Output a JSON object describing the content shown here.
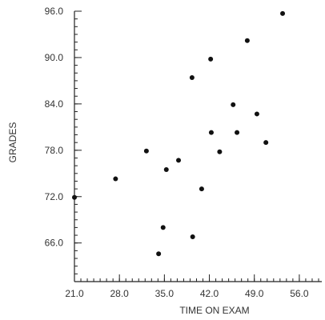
{
  "chart_data": {
    "type": "scatter",
    "xlabel": "TIME ON EXAM",
    "ylabel": "GRADES",
    "xlim": [
      21.0,
      59.5
    ],
    "ylim": [
      61.0,
      96.0
    ],
    "x_ticks": [
      21.0,
      28.0,
      35.0,
      42.0,
      49.0,
      56.0
    ],
    "x_tick_labels": [
      "21.0",
      "28.0",
      "35.0",
      "42.0",
      "49.0",
      "56.0"
    ],
    "y_ticks": [
      66.0,
      72.0,
      78.0,
      84.0,
      90.0,
      96.0
    ],
    "y_tick_labels": [
      "66.0",
      "72.0",
      "78.0",
      "84.0",
      "90.0",
      "96.0"
    ],
    "grid": false,
    "points": [
      {
        "x": 21.0,
        "y": 71.9
      },
      {
        "x": 27.4,
        "y": 74.3
      },
      {
        "x": 32.2,
        "y": 77.9
      },
      {
        "x": 34.1,
        "y": 64.6
      },
      {
        "x": 34.8,
        "y": 68.0
      },
      {
        "x": 35.3,
        "y": 75.5
      },
      {
        "x": 37.2,
        "y": 76.7
      },
      {
        "x": 39.3,
        "y": 87.4
      },
      {
        "x": 39.4,
        "y": 66.8
      },
      {
        "x": 40.8,
        "y": 73.0
      },
      {
        "x": 42.2,
        "y": 89.8
      },
      {
        "x": 42.3,
        "y": 80.3
      },
      {
        "x": 43.6,
        "y": 77.8
      },
      {
        "x": 45.7,
        "y": 83.9
      },
      {
        "x": 46.3,
        "y": 80.3
      },
      {
        "x": 47.9,
        "y": 92.2
      },
      {
        "x": 49.4,
        "y": 82.7
      },
      {
        "x": 50.8,
        "y": 79.0
      },
      {
        "x": 53.4,
        "y": 95.7
      }
    ]
  }
}
